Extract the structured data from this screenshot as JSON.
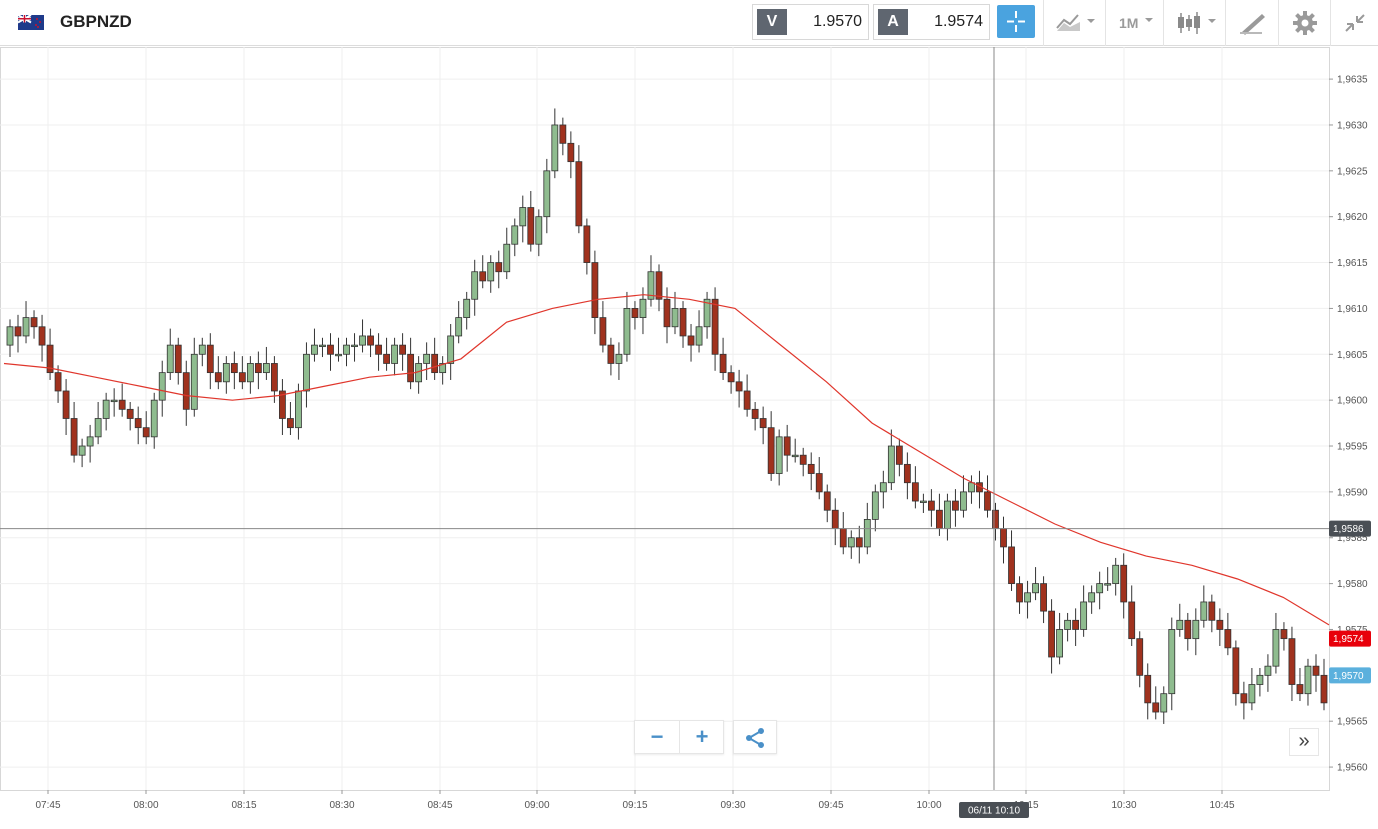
{
  "header": {
    "symbol": "GBPNZD",
    "flag_icon": "gb-nz-flag-icon",
    "sell": {
      "label": "V",
      "value": "1.9570"
    },
    "buy": {
      "label": "A",
      "value": "1.9574"
    },
    "timeframe": "1M",
    "tools": [
      "crosshair-icon",
      "chart-type-icon",
      "timeframe-selector",
      "candlestick-icon",
      "drawing-tools-icon",
      "gear-icon",
      "fullscreen-icon"
    ]
  },
  "colors": {
    "bull": "#8fbc8f",
    "bear": "#a0321e",
    "ma_line": "#e0362c",
    "accent": "#4aa3df",
    "crosshair_tag": "#4a4f55",
    "ask_tag": "#e8000b",
    "bid_tag": "#5bb0dd"
  },
  "crosshair": {
    "time_label": "06/11 10:10",
    "price_label": "1,9586"
  },
  "price_tags": {
    "ask": "1,9574",
    "bid": "1,9570"
  },
  "chart_data": {
    "type": "candlestick",
    "y_ticks": [
      "1,9635",
      "1,9630",
      "1,9625",
      "1,9620",
      "1,9615",
      "1,9610",
      "1,9605",
      "1,9600",
      "1,9595",
      "1,9590",
      "1,9585",
      "1,9580",
      "1,9575",
      "1,9570",
      "1,9565",
      "1,9560"
    ],
    "ylim": [
      1.95575,
      1.96385
    ],
    "x_ticks": [
      "07:45",
      "08:00",
      "08:15",
      "08:30",
      "08:45",
      "09:00",
      "09:15",
      "09:30",
      "09:45",
      "10:00",
      "10:15",
      "10:30",
      "10:45"
    ],
    "candles": [],
    "ma": [
      1.9604,
      1.96035,
      1.96025,
      1.96015,
      1.96005,
      1.96,
      1.96005,
      1.96015,
      1.96025,
      1.9603,
      1.96045,
      1.96085,
      1.961,
      1.9611,
      1.96115,
      1.9611,
      1.961,
      1.9606,
      1.9602,
      1.95975,
      1.95945,
      1.95915,
      1.9589,
      1.95865,
      1.95845,
      1.9583,
      1.9582,
      1.95805,
      1.95785,
      1.95755
    ]
  },
  "controls": {
    "zoom_out": "−",
    "zoom_in": "+",
    "scroll_right": "»"
  }
}
